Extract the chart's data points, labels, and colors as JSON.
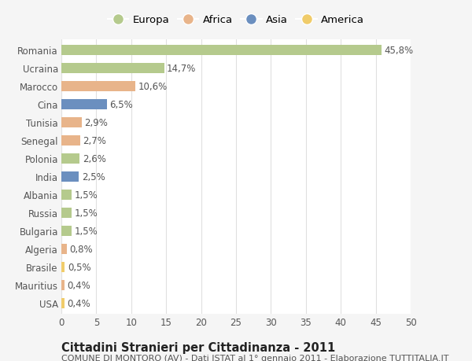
{
  "countries": [
    "Romania",
    "Ucraina",
    "Marocco",
    "Cina",
    "Tunisia",
    "Senegal",
    "Polonia",
    "India",
    "Albania",
    "Russia",
    "Bulgaria",
    "Algeria",
    "Brasile",
    "Mauritius",
    "USA"
  ],
  "values": [
    45.8,
    14.7,
    10.6,
    6.5,
    2.9,
    2.7,
    2.6,
    2.5,
    1.5,
    1.5,
    1.5,
    0.8,
    0.5,
    0.4,
    0.4
  ],
  "labels": [
    "45,8%",
    "14,7%",
    "10,6%",
    "6,5%",
    "2,9%",
    "2,7%",
    "2,6%",
    "2,5%",
    "1,5%",
    "1,5%",
    "1,5%",
    "0,8%",
    "0,5%",
    "0,4%",
    "0,4%"
  ],
  "continents": [
    "Europa",
    "Europa",
    "Africa",
    "Asia",
    "Africa",
    "Africa",
    "Europa",
    "Asia",
    "Europa",
    "Europa",
    "Europa",
    "Africa",
    "America",
    "Africa",
    "America"
  ],
  "continent_colors": {
    "Europa": "#b5ca8d",
    "Africa": "#e8b48a",
    "Asia": "#6b8fbf",
    "America": "#f0cc6a"
  },
  "legend_order": [
    "Europa",
    "Africa",
    "Asia",
    "America"
  ],
  "title1": "Cittadini Stranieri per Cittadinanza - 2011",
  "title2": "COMUNE DI MONTORO (AV) - Dati ISTAT al 1° gennaio 2011 - Elaborazione TUTTITALIA.IT",
  "xlim": [
    0,
    50
  ],
  "xticks": [
    0,
    5,
    10,
    15,
    20,
    25,
    30,
    35,
    40,
    45,
    50
  ],
  "background_color": "#f5f5f5",
  "plot_background": "#ffffff",
  "grid_color": "#e0e0e0",
  "bar_height": 0.6,
  "label_fontsize": 8.5,
  "tick_fontsize": 8.5,
  "title1_fontsize": 10.5,
  "title2_fontsize": 8
}
